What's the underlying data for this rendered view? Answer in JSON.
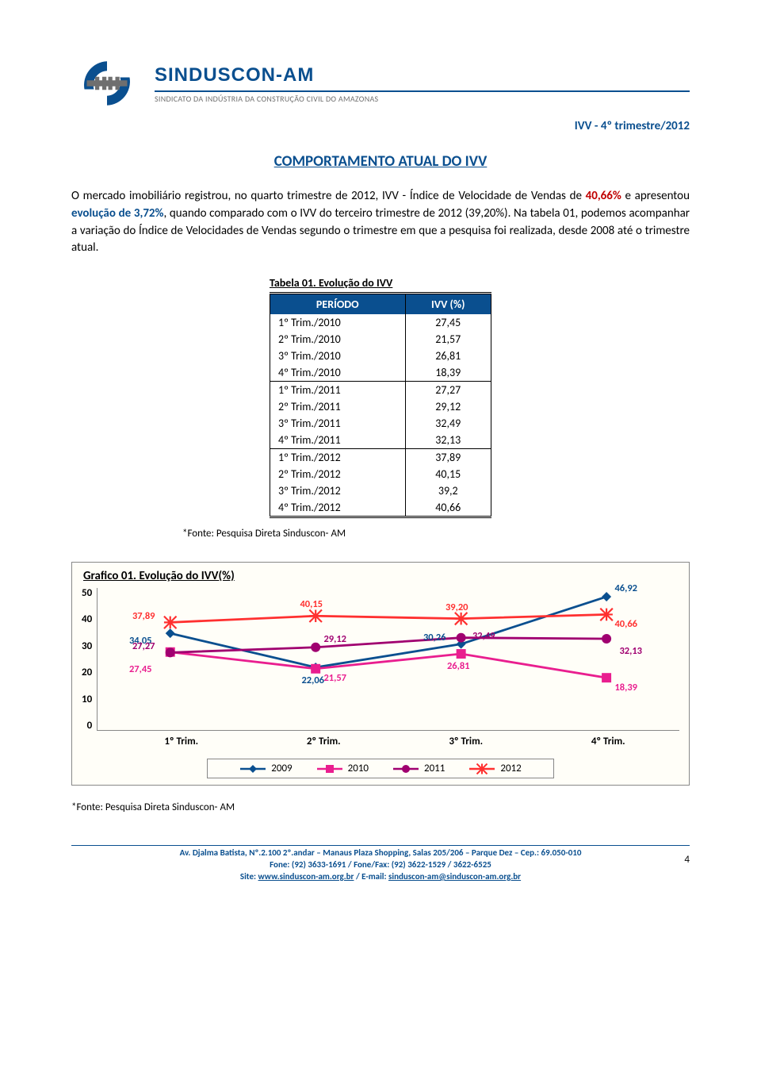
{
  "brand": {
    "name": "SINDUSCON-AM",
    "tagline": "SINDICATO DA INDÚSTRIA DA CONSTRUÇÃO CIVIL DO AMAZONAS"
  },
  "doc_tag": "IVV - 4º trimestre/2012",
  "section_title": "COMPORTAMENTO ATUAL DO IVV",
  "paragraph": {
    "p1_a": "O mercado imobiliário registrou, no quarto trimestre de 2012, IVV - Índice de Velocidade de Vendas de ",
    "p1_red": "40,66%",
    "p1_b": " e apresentou ",
    "p1_blue": "evolução de 3,72%",
    "p1_c": ", quando comparado com o IVV do terceiro trimestre de 2012 (39,20%). Na tabela 01, podemos acompanhar a variação do Índice de Velocidades de Vendas segundo o trimestre em que a pesquisa foi realizada, desde 2008 até o trimestre atual."
  },
  "table": {
    "caption": "Tabela 01. Evolução do IVV",
    "col1": "PERÍODO",
    "col2": "IVV (%)",
    "rows": [
      {
        "p": "1º Trim./2010",
        "v": "27,45",
        "end": false
      },
      {
        "p": "2º Trim./2010",
        "v": "21,57",
        "end": false
      },
      {
        "p": "3º Trim./2010",
        "v": "26,81",
        "end": false
      },
      {
        "p": "4º Trim./2010",
        "v": "18,39",
        "end": true
      },
      {
        "p": "1º Trim./2011",
        "v": "27,27",
        "end": false
      },
      {
        "p": "2º Trim./2011",
        "v": "29,12",
        "end": false
      },
      {
        "p": "3º Trim./2011",
        "v": "32,49",
        "end": false
      },
      {
        "p": "4º Trim./2011",
        "v": "32,13",
        "end": true
      },
      {
        "p": "1º Trim./2012",
        "v": "37,89",
        "end": false
      },
      {
        "p": "2º Trim./2012",
        "v": "40,15",
        "end": false
      },
      {
        "p": "3º Trim./2012",
        "v": "39,2",
        "end": false
      },
      {
        "p": "4º Trim./2012",
        "v": "40,66",
        "end": false
      }
    ]
  },
  "source": "*Fonte: Pesquisa Direta Sinduscon- AM",
  "chart": {
    "title": "Grafico 01. Evolução do IVV(%)",
    "xcats": [
      "1º Trim.",
      "2º Trim.",
      "3º Trim.",
      "4º Trim."
    ],
    "yticks": [
      "0",
      "10",
      "20",
      "30",
      "40",
      "50"
    ],
    "ylim": [
      0,
      50
    ],
    "series": [
      {
        "name": "2009",
        "color": "#0a4f8f",
        "marker": "diamond",
        "values": [
          34.05,
          22.06,
          30.26,
          46.92
        ],
        "labels": [
          "34,05",
          "22,06",
          "30,26",
          "46,92"
        ],
        "label_pos": [
          "bl",
          "b",
          "tl",
          "tr"
        ]
      },
      {
        "name": "2010",
        "color": "#e91e8f",
        "marker": "square",
        "values": [
          27.45,
          21.57,
          26.81,
          18.39
        ],
        "labels": [
          "27,45",
          "21,57",
          "26,81",
          "18,39"
        ],
        "label_pos": [
          "bl2",
          "br",
          "b",
          "br"
        ]
      },
      {
        "name": "2011",
        "color": "#a00070",
        "marker": "circle",
        "values": [
          27.27,
          29.12,
          32.49,
          32.13
        ],
        "labels": [
          "27,27",
          "29,12",
          "32,49",
          "32,13"
        ],
        "label_pos": [
          "tl",
          "tr",
          "tr2",
          "br2"
        ]
      },
      {
        "name": "2012",
        "color": "#ff3030",
        "marker": "star",
        "values": [
          37.89,
          40.15,
          39.2,
          40.66
        ],
        "labels": [
          "37,89",
          "40,15",
          "39,20",
          "40,66"
        ],
        "label_pos": [
          "tl",
          "t",
          "t",
          "br"
        ]
      }
    ],
    "line_width": 2.8,
    "marker_size": 6
  },
  "footer": {
    "line1": "Av. Djalma Batista, Nº.2.100 2º.andar – Manaus Plaza Shopping, Salas 205/206 – Parque Dez – Cep.: 69.050-010",
    "line2": "Fone: (92) 3633-1691 / Fone/Fax: (92) 3622-1529 / 3622-6525",
    "line3a": "Site: ",
    "site": "www.sinduscon-am.org.br",
    "line3b": " / E-mail: ",
    "email": "sinduscon-am@sinduscon-am.org.br"
  },
  "page_number": "4"
}
